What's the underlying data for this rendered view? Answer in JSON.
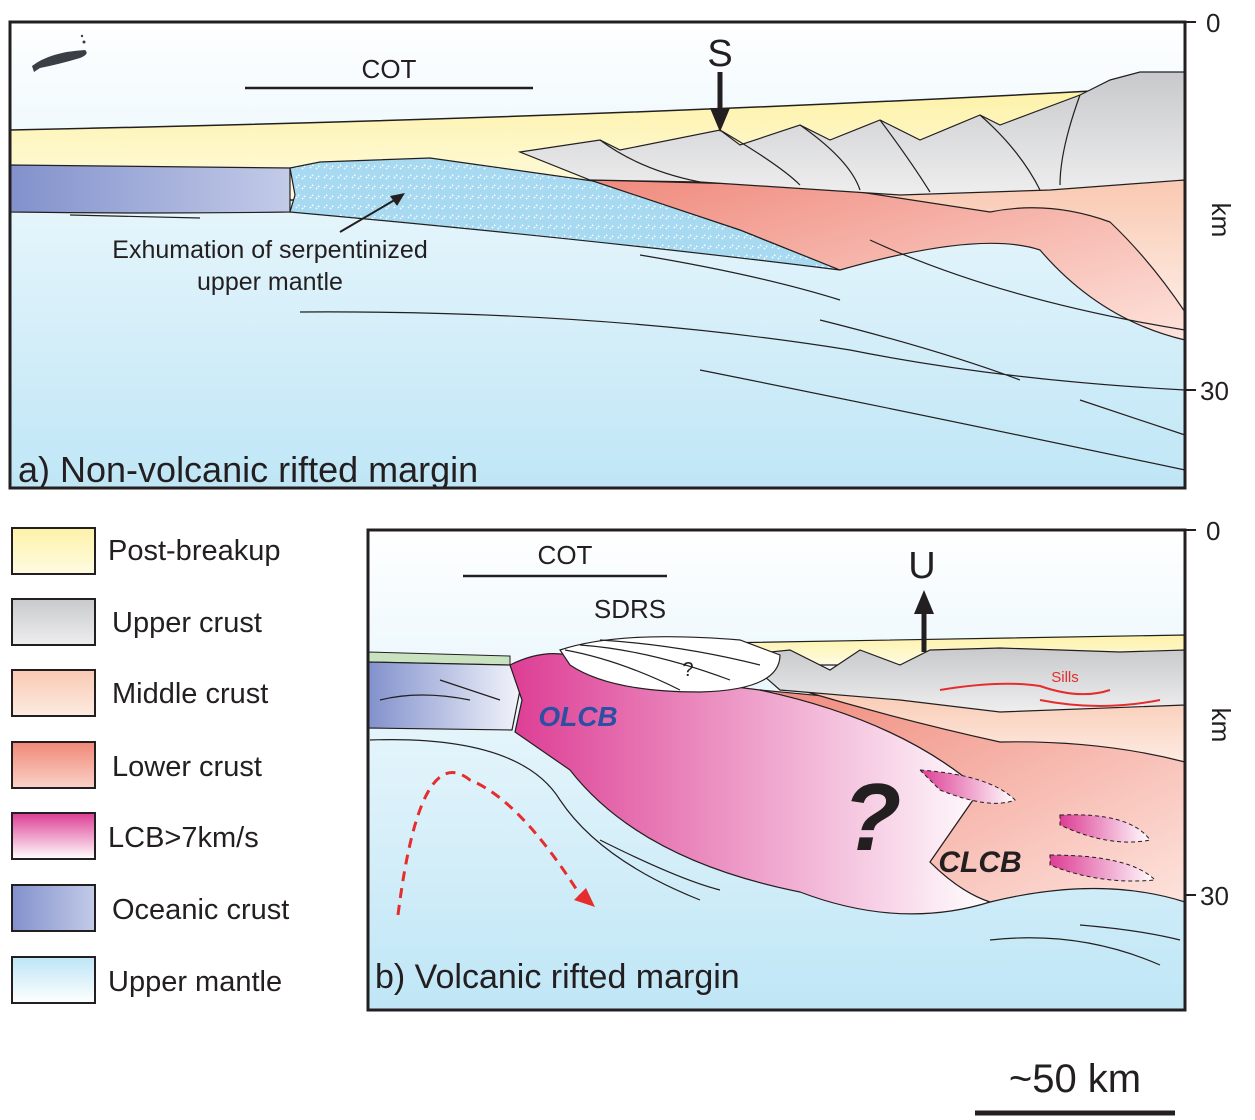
{
  "panel_a": {
    "label": "a) Non-volcanic rifted margin",
    "cot": "COT",
    "arrow_label": "S",
    "annotation": [
      "Exhumation of serpentinized",
      "upper mantle"
    ],
    "depth_ticks": [
      0,
      30
    ],
    "depth_unit": "km"
  },
  "panel_b": {
    "label": "b) Volcanic rifted margin",
    "cot": "COT",
    "sdrs": "SDRS",
    "sdrs_question": "?",
    "arrow_label": "U",
    "olcb": "OLCB",
    "clcb": "CLCB",
    "question": "?",
    "sills": "Sills",
    "depth_ticks": [
      0,
      30
    ],
    "depth_unit": "km"
  },
  "legend": [
    "Post-breakup",
    "Upper crust",
    "Middle crust",
    "Lower crust",
    "LCB>7km/s",
    "Oceanic crust",
    "Upper mantle"
  ],
  "scale_bar": "~50 km"
}
